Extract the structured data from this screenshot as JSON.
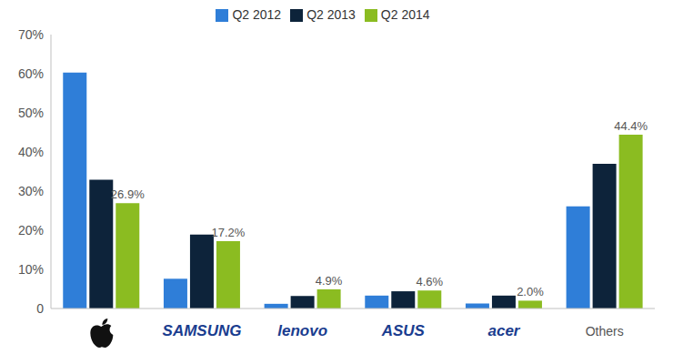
{
  "chart_data": {
    "type": "bar",
    "categories": [
      null,
      "SAMSUNG",
      "lenovo",
      "ASUS",
      "acer",
      "Others"
    ],
    "series": [
      {
        "name": "Q2 2012",
        "color": "#2f7ed8",
        "values": [
          60.3,
          7.6,
          1.2,
          3.3,
          1.3,
          26.1
        ]
      },
      {
        "name": "Q2 2013",
        "color": "#0d233a",
        "values": [
          32.9,
          18.9,
          3.2,
          4.4,
          3.3,
          37.0
        ]
      },
      {
        "name": "Q2 2014",
        "color": "#8bbc21",
        "values": [
          26.9,
          17.2,
          4.9,
          4.6,
          2.0,
          44.4
        ],
        "data_labels": true,
        "value_labels": [
          "26.9%",
          "17.2%",
          "4.9%",
          "4.6%",
          "2.0%",
          "44.4%"
        ]
      }
    ],
    "ylim": [
      0,
      70
    ],
    "yticks": [
      0,
      {
        "value": 10,
        "label": "10%"
      },
      {
        "value": 20,
        "label": "20%"
      },
      {
        "value": 30,
        "label": "30%"
      },
      {
        "value": 40,
        "label": "40%"
      },
      {
        "value": 50,
        "label": "50%"
      },
      {
        "value": 60,
        "label": "60%"
      },
      {
        "value": 70,
        "label": "70%"
      }
    ],
    "grid": false,
    "legend": "top"
  }
}
